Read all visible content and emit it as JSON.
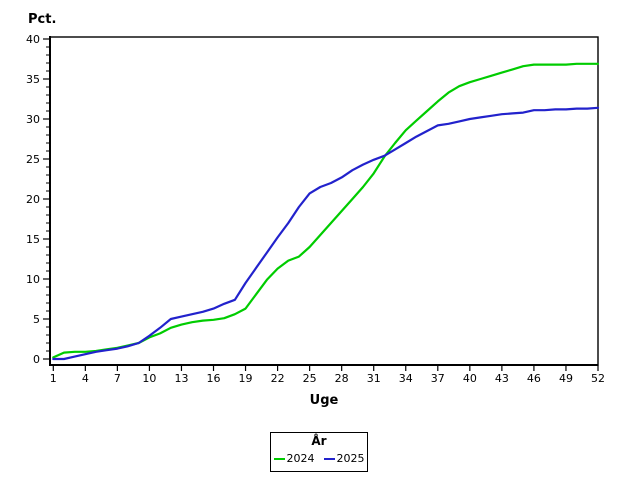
{
  "axes": {
    "y_label": "Pct.",
    "x_label": "Uge"
  },
  "legend": {
    "title": "År",
    "entries": [
      "2024",
      "2025"
    ]
  },
  "chart_data": {
    "type": "line",
    "xlabel": "Uge",
    "ylabel": "Pct.",
    "xlim": [
      1,
      52
    ],
    "ylim": [
      0,
      40
    ],
    "x_ticks": [
      1,
      4,
      7,
      10,
      13,
      16,
      19,
      22,
      25,
      28,
      31,
      34,
      37,
      40,
      43,
      46,
      49,
      52
    ],
    "y_ticks": [
      0,
      5,
      10,
      15,
      20,
      25,
      30,
      35,
      40
    ],
    "y_minor_tick_step": 1,
    "grid": false,
    "legend_title": "År",
    "legend_position": "bottom-center",
    "frame_color": "#000000",
    "x": [
      1,
      2,
      3,
      4,
      5,
      6,
      7,
      8,
      9,
      10,
      11,
      12,
      13,
      14,
      15,
      16,
      17,
      18,
      19,
      20,
      21,
      22,
      23,
      24,
      25,
      26,
      27,
      28,
      29,
      30,
      31,
      32,
      33,
      34,
      35,
      36,
      37,
      38,
      39,
      40,
      41,
      42,
      43,
      44,
      45,
      46,
      47,
      48,
      49,
      50,
      51,
      52
    ],
    "series": [
      {
        "name": "2024",
        "color": "#00cc00",
        "values": [
          0.2,
          0.8,
          0.9,
          0.9,
          1.0,
          1.2,
          1.4,
          1.7,
          2.0,
          2.7,
          3.2,
          3.9,
          4.3,
          4.6,
          4.8,
          4.9,
          5.1,
          5.6,
          6.3,
          8.1,
          9.9,
          11.3,
          12.3,
          12.8,
          14.0,
          15.5,
          17.0,
          18.5,
          20.0,
          21.5,
          23.2,
          25.3,
          27.0,
          28.6,
          29.8,
          31.0,
          32.2,
          33.3,
          34.1,
          34.6,
          35.0,
          35.4,
          35.8,
          36.2,
          36.6,
          36.8,
          36.8,
          36.8,
          36.8,
          36.9,
          36.9,
          36.9
        ]
      },
      {
        "name": "2025",
        "color": "#2222cc",
        "values": [
          0.0,
          0.0,
          0.3,
          0.6,
          0.9,
          1.1,
          1.3,
          1.6,
          2.0,
          2.9,
          3.9,
          5.0,
          5.3,
          5.6,
          5.9,
          6.3,
          6.9,
          7.4,
          9.5,
          11.4,
          13.3,
          15.2,
          17.0,
          19.0,
          20.7,
          21.5,
          22.0,
          22.7,
          23.6,
          24.3,
          24.9,
          25.4,
          26.2,
          27.0,
          27.8,
          28.5,
          29.2,
          29.4,
          29.7,
          30.0,
          30.2,
          30.4,
          30.6,
          30.7,
          30.8,
          31.1,
          31.1,
          31.2,
          31.2,
          31.3,
          31.3,
          31.4
        ]
      }
    ]
  }
}
